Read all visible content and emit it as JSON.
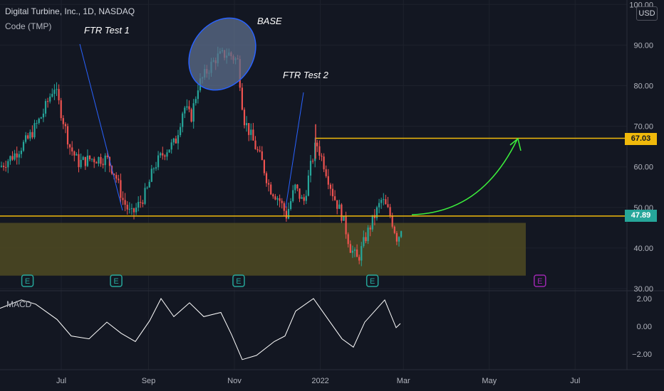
{
  "header": {
    "title": "Digital Turbine, Inc., 1D, NASDAQ",
    "subtitle": "Code (TMP)",
    "currency": "USD",
    "macd_label": "MACD"
  },
  "annotations": {
    "ftr_test_1": "FTR Test 1",
    "base": "BASE",
    "ftr_test_2": "FTR Test 2"
  },
  "colors": {
    "background": "#131722",
    "up": "#26a69a",
    "down": "#ef5350",
    "level_line": "#f0b90b",
    "zone_fill": "#4f4a22",
    "arrow": "#3cf03c",
    "ellipse": "#5d6f8c",
    "ellipse_stroke": "#2962ff",
    "macd_line": "#ffffff",
    "earnings_past": "#26a69a",
    "earnings_future": "#9c27b0"
  },
  "chart_data": {
    "type": "candlestick",
    "title": "Digital Turbine, Inc., 1D, NASDAQ",
    "y_axis": {
      "ticks": [
        "100.00",
        "90.00",
        "80.00",
        "70.00",
        "60.00",
        "50.00",
        "40.00",
        "30.00"
      ],
      "ylim": [
        30,
        100
      ]
    },
    "x_axis": {
      "ticks": [
        "Jul",
        "Sep",
        "Nov",
        "2022",
        "Mar",
        "May",
        "Jul"
      ]
    },
    "price_levels": [
      {
        "label": "67.03",
        "value": 67.03,
        "color": "#f0b90b"
      },
      {
        "label": "47.89",
        "value": 47.89,
        "color": "#26a69a"
      }
    ],
    "demand_zone": {
      "low": 33.2,
      "high": 46.2
    },
    "earnings_markers": [
      {
        "label": "E",
        "date": "2021-06-07",
        "future": false
      },
      {
        "label": "E",
        "date": "2021-08-09",
        "future": false
      },
      {
        "label": "E",
        "date": "2021-11-04",
        "future": false
      },
      {
        "label": "E",
        "date": "2022-02-07",
        "future": false
      },
      {
        "label": "E",
        "date": "2022-06-06",
        "future": true
      }
    ],
    "macd": {
      "name": "MACD",
      "ticks": [
        "2.00",
        "0.00",
        "−2.00"
      ],
      "ylim": [
        -2.7,
        2.5
      ]
    }
  }
}
